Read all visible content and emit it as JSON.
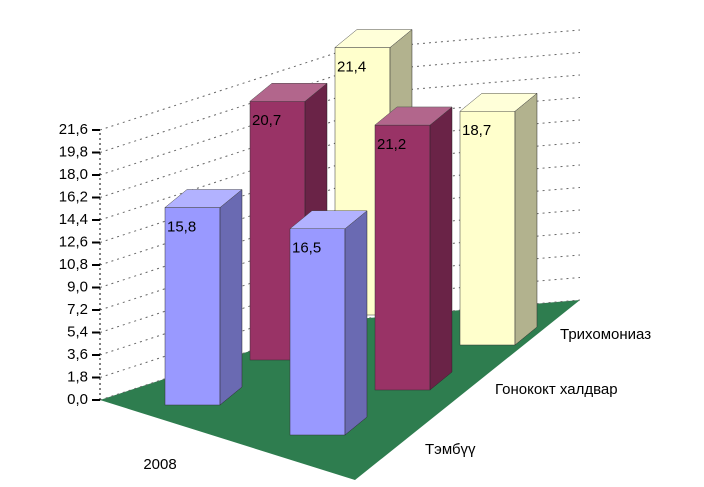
{
  "chart_data": {
    "type": "bar3d",
    "categories": [
      "2008",
      null
    ],
    "series": [
      {
        "name": "Тэмбүү",
        "color": "#9999ff",
        "values": [
          15.8,
          16.5
        ],
        "value_labels": [
          "15,8",
          "16,5"
        ]
      },
      {
        "name": "Гонококт халдвар",
        "color": "#993366",
        "values": [
          20.7,
          21.2
        ],
        "value_labels": [
          "20,7",
          "21,2"
        ]
      },
      {
        "name": "Трихомониаз",
        "color": "#ffffcc",
        "values": [
          21.4,
          18.7
        ],
        "value_labels": [
          "21,4",
          "18,7"
        ]
      }
    ],
    "ylim": [
      0,
      21.6
    ],
    "yticks": [
      {
        "value": 0,
        "label": "0,0"
      },
      {
        "value": 1.8,
        "label": "1,8"
      },
      {
        "value": 3.6,
        "label": "3,6"
      },
      {
        "value": 5.4,
        "label": "5,4"
      },
      {
        "value": 7.2,
        "label": "7,2"
      },
      {
        "value": 9,
        "label": "9,0"
      },
      {
        "value": 10.8,
        "label": "10,8"
      },
      {
        "value": 12.6,
        "label": "12,6"
      },
      {
        "value": 14.4,
        "label": "14,4"
      },
      {
        "value": 16.2,
        "label": "16,2"
      },
      {
        "value": 18,
        "label": "18,0"
      },
      {
        "value": 19.8,
        "label": "19,8"
      },
      {
        "value": 21.6,
        "label": "21,6"
      }
    ],
    "grid": true,
    "floor_color": "#2e7d4f"
  }
}
